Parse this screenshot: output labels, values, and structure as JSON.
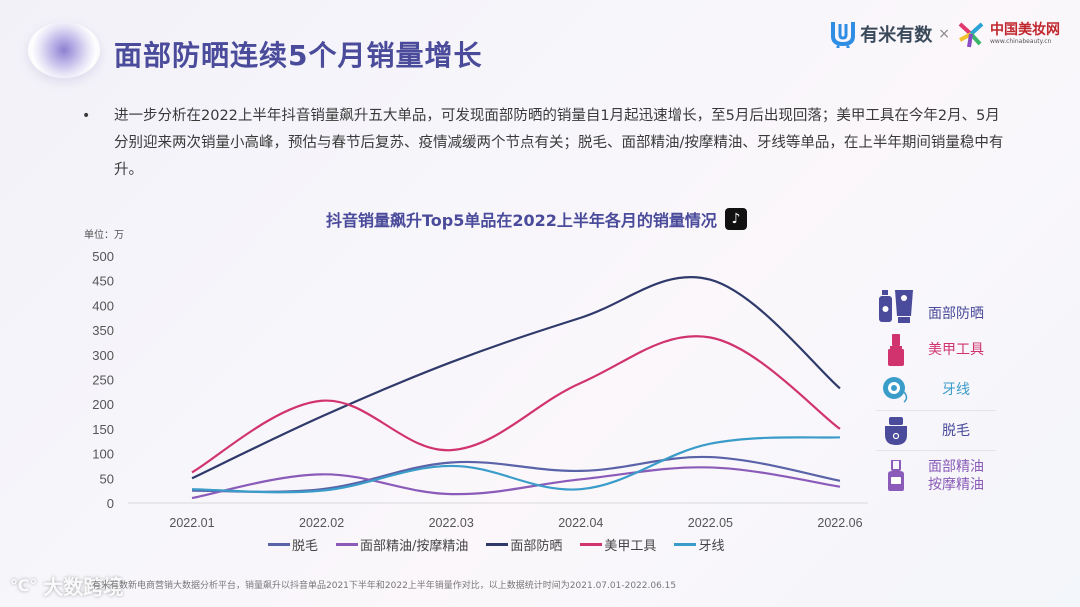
{
  "header": {
    "title": "面部防晒连续5个月销量增长",
    "brand_primary": "有米有数",
    "brand_separator": "×",
    "brand_secondary": "中国美妆网",
    "brand_secondary_url": "www.chinabeauty.cn"
  },
  "summary": {
    "bullet": "•",
    "text": "进一步分析在2022上半年抖音销量飙升五大单品，可发现面部防晒的销量自1月起迅速增长，至5月后出现回落；美甲工具在今年2月、5月分别迎来两次销量小高峰，预估与春节后复苏、疫情减缓两个节点有关；脱毛、面部精油/按摩精油、牙线等单品，在上半年期间销量稳中有升。"
  },
  "chart_title": "抖音销量飙升Top5单品在2022上半年各月的销量情况",
  "chart_icon": "tiktok-icon",
  "unit_label": "单位：万",
  "side_legend": [
    {
      "label": "面部防晒",
      "icon": "sunscreen-icon",
      "color": "#4a4b9a"
    },
    {
      "label": "美甲工具",
      "icon": "nail-polish-icon",
      "color": "#d1336e"
    },
    {
      "label": "牙线",
      "icon": "dental-floss-icon",
      "color": "#3a9cc9"
    },
    {
      "label": "脱毛",
      "icon": "epilator-icon",
      "color": "#4a4b9a"
    },
    {
      "label": "面部精油\n按摩精油",
      "line1": "面部精油",
      "line2": "按摩精油",
      "icon": "oil-bottle-icon",
      "color": "#8a5bb8"
    }
  ],
  "legend": [
    {
      "label": "脱毛",
      "color": "#5a62a8"
    },
    {
      "label": "面部精油/按摩精油",
      "color": "#8a5bb8"
    },
    {
      "label": "面部防晒",
      "color": "#2f3a6b"
    },
    {
      "label": "美甲工具",
      "color": "#d1336e"
    },
    {
      "label": "牙线",
      "color": "#3a9cc9"
    }
  ],
  "footer": {
    "source": "有米有数新电商营销大数据分析平台，销量飙升以抖音单品2021下半年和2022上半年销量作对比，以上数据统计时间为2021.07.01-2022.06.15",
    "watermark": "大数跨境"
  },
  "chart_data": {
    "type": "line",
    "title": "抖音销量飙升Top5单品在2022上半年各月的销量情况",
    "xlabel": "",
    "ylabel": "单位：万",
    "categories": [
      "2022.01",
      "2022.02",
      "2022.03",
      "2022.04",
      "2022.05",
      "2022.06"
    ],
    "yticks": [
      0,
      50,
      100,
      150,
      200,
      250,
      300,
      350,
      400,
      450,
      500
    ],
    "ylim": [
      0,
      500
    ],
    "grid": false,
    "legend_position": "bottom",
    "smooth": true,
    "series": [
      {
        "name": "脱毛",
        "color": "#5a62a8",
        "values": [
          25,
          28,
          82,
          65,
          93,
          45
        ]
      },
      {
        "name": "面部精油/按摩精油",
        "color": "#8a5bb8",
        "values": [
          10,
          58,
          18,
          48,
          72,
          33
        ]
      },
      {
        "name": "面部防晒",
        "color": "#2f3a6b",
        "values": [
          50,
          175,
          285,
          375,
          452,
          232
        ]
      },
      {
        "name": "美甲工具",
        "color": "#d1336e",
        "values": [
          62,
          207,
          107,
          243,
          335,
          150
        ]
      },
      {
        "name": "牙线",
        "color": "#3a9cc9",
        "values": [
          28,
          25,
          75,
          28,
          120,
          133
        ]
      }
    ]
  }
}
